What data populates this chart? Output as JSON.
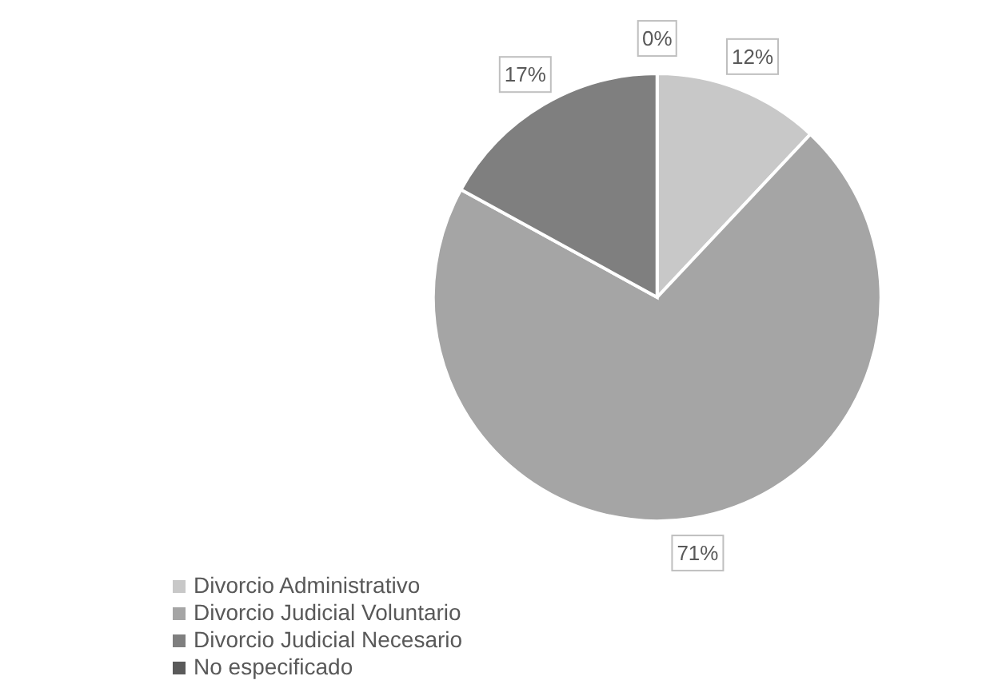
{
  "chart_data": {
    "type": "pie",
    "categories": [
      "Divorcio Administrativo",
      "Divorcio Judicial Voluntario",
      "Divorcio Judicial Necesario",
      "No especificado"
    ],
    "values": [
      12,
      71,
      17,
      0
    ],
    "colors": [
      "#c8c8c8",
      "#a5a5a5",
      "#7f7f7f",
      "#5a5a5a"
    ],
    "value_labels": [
      "12%",
      "71%",
      "17%",
      "0%"
    ],
    "legend": "bottom left"
  }
}
